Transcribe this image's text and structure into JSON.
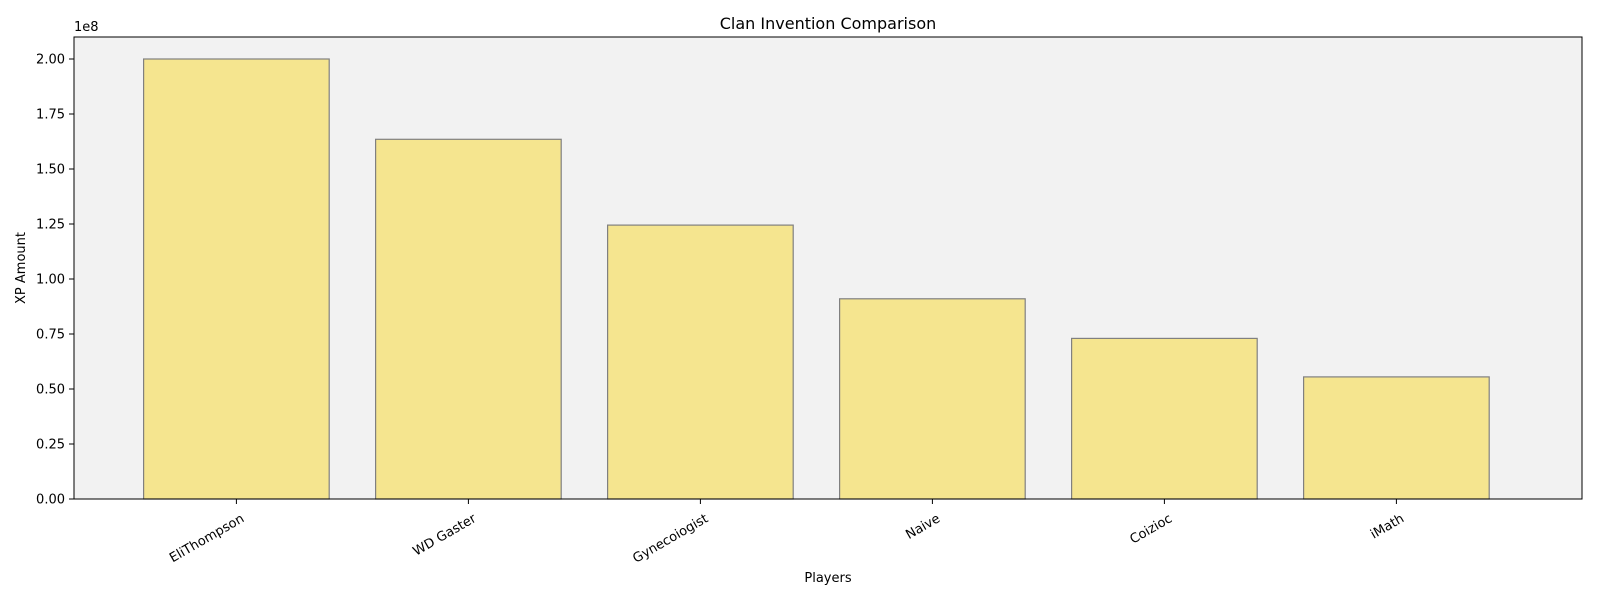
{
  "chart_data": {
    "type": "bar",
    "title": "Clan Invention Comparison",
    "xlabel": "Players",
    "ylabel": "XP Amount",
    "scale_label": "1e8",
    "categories": [
      "EliThompson",
      "WD Gaster",
      "Gynecoiogist",
      "Naive",
      "Coizioc",
      "iMath"
    ],
    "values": [
      200000000,
      163500000,
      124500000,
      91000000,
      73000000,
      55500000
    ],
    "ylim": [
      0,
      210000000
    ],
    "yticks": [
      0,
      25000000,
      50000000,
      75000000,
      100000000,
      125000000,
      150000000,
      175000000,
      200000000
    ],
    "ytick_labels": [
      "0.00",
      "0.25",
      "0.50",
      "0.75",
      "1.00",
      "1.25",
      "1.50",
      "1.75",
      "2.00"
    ],
    "grid": false,
    "legend": "none",
    "colors": {
      "bar_fill": "#f5e58f",
      "bar_edge": "#808080",
      "plot_background": "#f2f2f2"
    }
  }
}
